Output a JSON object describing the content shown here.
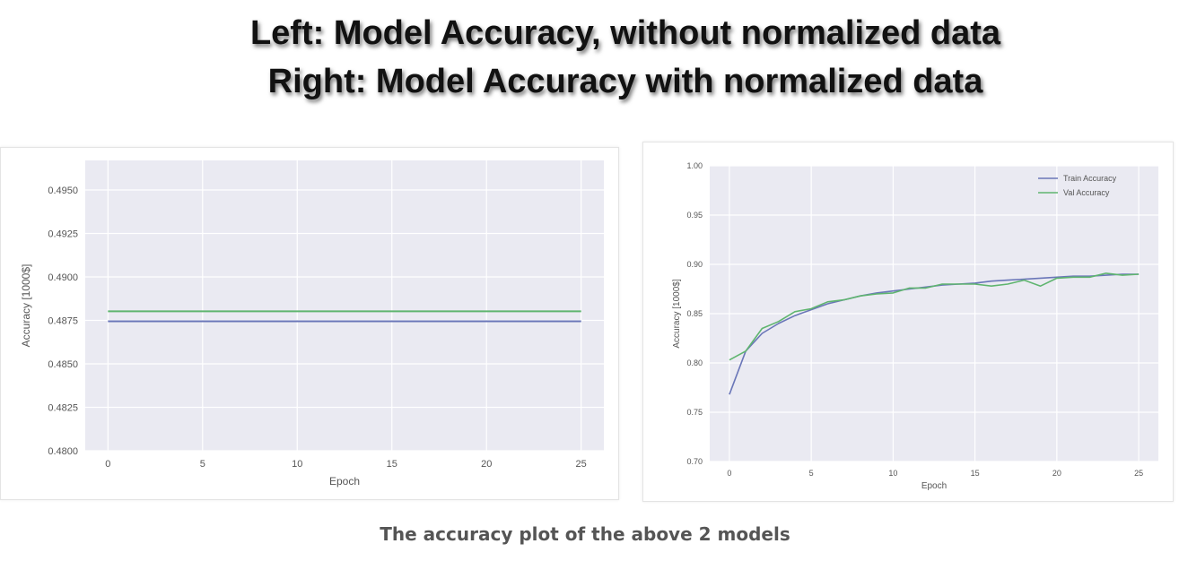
{
  "header": {
    "line1": "Left: Model Accuracy, without normalized data",
    "line2": "Right: Model Accuracy with normalized data"
  },
  "caption": "The accuracy plot of the above 2 models",
  "colors": {
    "train": "#6a76b8",
    "val": "#5fb56f",
    "plot_bg": "#eaeaf2",
    "grid": "#ffffff"
  },
  "chart_data": [
    {
      "type": "line",
      "title": "",
      "xlabel": "Epoch",
      "ylabel": "Accuracy [1000$]",
      "xlim": [
        -1.2,
        26.2
      ],
      "ylim": [
        0.48,
        0.4967
      ],
      "x_ticks": [
        0,
        5,
        10,
        15,
        20,
        25
      ],
      "x_tick_labels": [
        "0",
        "5",
        "10",
        "15",
        "20",
        "25"
      ],
      "y_ticks": [
        0.48,
        0.4825,
        0.485,
        0.4875,
        0.49,
        0.4925,
        0.495
      ],
      "y_tick_labels": [
        "0.4800",
        "0.4825",
        "0.4850",
        "0.4875",
        "0.4900",
        "0.4925",
        "0.4950"
      ],
      "grid": true,
      "legend": "none",
      "series": [
        {
          "key": "train",
          "x": [
            0,
            25
          ],
          "values": [
            0.48745,
            0.48745
          ]
        },
        {
          "key": "val",
          "x": [
            0,
            25
          ],
          "values": [
            0.48802,
            0.48802
          ]
        }
      ]
    },
    {
      "type": "line",
      "title": "",
      "xlabel": "Epoch",
      "ylabel": "Accuracy [1000$]",
      "xlim": [
        -1.2,
        26.2
      ],
      "ylim": [
        0.7,
        1.0
      ],
      "x_ticks": [
        0,
        5,
        10,
        15,
        20,
        25
      ],
      "x_tick_labels": [
        "0",
        "5",
        "10",
        "15",
        "20",
        "25"
      ],
      "y_ticks": [
        0.7,
        0.75,
        0.8,
        0.85,
        0.9,
        0.95,
        1.0
      ],
      "y_tick_labels": [
        "0.70",
        "0.75",
        "0.80",
        "0.85",
        "0.90",
        "0.95",
        "1.00"
      ],
      "grid": true,
      "legend": "top-right",
      "series": [
        {
          "key": "train",
          "name": "Train Accuracy",
          "x": [
            0,
            1,
            2,
            3,
            4,
            5,
            6,
            7,
            8,
            9,
            10,
            11,
            12,
            13,
            14,
            15,
            16,
            17,
            18,
            19,
            20,
            21,
            22,
            23,
            24,
            25
          ],
          "values": [
            0.768,
            0.812,
            0.83,
            0.84,
            0.848,
            0.854,
            0.86,
            0.864,
            0.868,
            0.871,
            0.873,
            0.875,
            0.877,
            0.879,
            0.88,
            0.881,
            0.883,
            0.884,
            0.885,
            0.886,
            0.887,
            0.888,
            0.888,
            0.889,
            0.89,
            0.89
          ]
        },
        {
          "key": "val",
          "name": "Val Accuracy",
          "x": [
            0,
            1,
            2,
            3,
            4,
            5,
            6,
            7,
            8,
            9,
            10,
            11,
            12,
            13,
            14,
            15,
            16,
            17,
            18,
            19,
            20,
            21,
            22,
            23,
            24,
            25
          ],
          "values": [
            0.803,
            0.812,
            0.835,
            0.842,
            0.852,
            0.855,
            0.862,
            0.864,
            0.868,
            0.87,
            0.871,
            0.876,
            0.876,
            0.88,
            0.88,
            0.88,
            0.878,
            0.88,
            0.884,
            0.878,
            0.886,
            0.887,
            0.887,
            0.891,
            0.889,
            0.89
          ]
        }
      ]
    }
  ]
}
